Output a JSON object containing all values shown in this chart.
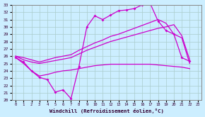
{
  "xlabel": "Windchill (Refroidissement éolien,°C)",
  "background_color": "#cceeff",
  "grid_color": "#aacccc",
  "line_color": "#cc00cc",
  "xlim": [
    -0.5,
    23.5
  ],
  "ylim": [
    20,
    33
  ],
  "xticks": [
    0,
    1,
    2,
    3,
    4,
    5,
    6,
    7,
    8,
    9,
    10,
    11,
    12,
    13,
    14,
    15,
    16,
    17,
    18,
    19,
    20,
    21,
    22,
    23
  ],
  "yticks": [
    20,
    21,
    22,
    23,
    24,
    25,
    26,
    27,
    28,
    29,
    30,
    31,
    32,
    33
  ],
  "s1_x": [
    0,
    1,
    2,
    3,
    4,
    5,
    6,
    7,
    8,
    9,
    10,
    11,
    12,
    13,
    14,
    15,
    16,
    17,
    18,
    19,
    20,
    21,
    22
  ],
  "s1_y": [
    25.8,
    25.2,
    24.0,
    23.1,
    22.8,
    21.1,
    21.4,
    20.2,
    24.6,
    30.0,
    31.5,
    31.0,
    31.6,
    32.2,
    32.3,
    32.5,
    33.0,
    33.2,
    30.8,
    29.5,
    29.0,
    25.8,
    25.3
  ],
  "s2_x": [
    0,
    1,
    2,
    3,
    4,
    5,
    6,
    7,
    8,
    9,
    10,
    11,
    12,
    13,
    14,
    15,
    16,
    17,
    18,
    19,
    20,
    21,
    22
  ],
  "s2_y": [
    25.8,
    25.0,
    24.0,
    23.3,
    23.5,
    23.8,
    24.0,
    24.1,
    24.3,
    24.5,
    24.7,
    24.8,
    24.9,
    24.9,
    24.9,
    24.9,
    24.9,
    24.9,
    24.8,
    24.7,
    24.6,
    24.5,
    24.3
  ],
  "s3_x": [
    0,
    1,
    2,
    3,
    4,
    5,
    6,
    7,
    8,
    9,
    10,
    11,
    12,
    13,
    14,
    15,
    16,
    17,
    18,
    19,
    20,
    21,
    22
  ],
  "s3_y": [
    26.0,
    25.5,
    25.2,
    25.0,
    25.2,
    25.4,
    25.6,
    25.8,
    26.3,
    26.8,
    27.2,
    27.6,
    28.0,
    28.3,
    28.6,
    28.9,
    29.2,
    29.5,
    29.8,
    30.0,
    30.3,
    28.8,
    25.5
  ],
  "s4_x": [
    0,
    1,
    2,
    3,
    4,
    5,
    6,
    7,
    8,
    9,
    10,
    11,
    12,
    13,
    14,
    15,
    16,
    17,
    18,
    19,
    20,
    21,
    22
  ],
  "s4_y": [
    26.0,
    25.8,
    25.5,
    25.2,
    25.5,
    25.8,
    26.0,
    26.2,
    26.8,
    27.3,
    27.8,
    28.2,
    28.7,
    29.0,
    29.4,
    29.8,
    30.2,
    30.6,
    31.0,
    30.5,
    29.0,
    28.5,
    25.0
  ]
}
